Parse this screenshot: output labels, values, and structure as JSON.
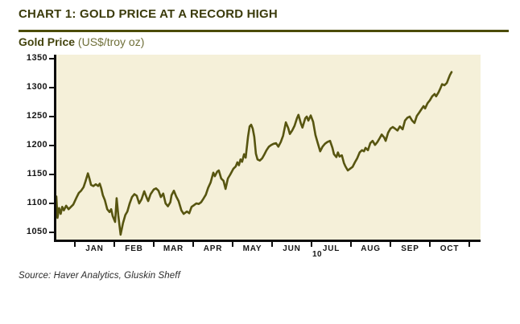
{
  "header": {
    "title": "CHART 1: GOLD PRICE AT A RECORD HIGH",
    "subtitle_bold": "Gold Price",
    "subtitle_units": " (US$/troy oz)"
  },
  "footer": {
    "source": "Source: Haver Analytics, Gluskin Sheff"
  },
  "colors": {
    "title": "#3b3b0b",
    "rule": "#4c4c08",
    "plot_bg": "#f5f0d9",
    "line": "#575510",
    "axis": "#0d0d0d"
  },
  "chart_data": {
    "type": "line",
    "title": "Gold Price",
    "ylabel": "US$/troy oz",
    "xlabel": "",
    "ylim": [
      1050,
      1350
    ],
    "y_ticks": [
      1050,
      1100,
      1150,
      1200,
      1250,
      1300,
      1350
    ],
    "x_month_labels": [
      "JAN",
      "FEB",
      "MAR",
      "APR",
      "MAY",
      "JUN",
      "JUL",
      "AUG",
      "SEP",
      "OCT"
    ],
    "x_year_label": "10",
    "grid": false,
    "legend": "none",
    "series_name": "Gold price, US$/troy oz, mid-Dec 2009 to mid-Oct 2010",
    "x_unit": "months from Jan 1, 2010",
    "points": [
      [
        -0.47,
        1112
      ],
      [
        -0.44,
        1075
      ],
      [
        -0.4,
        1092
      ],
      [
        -0.36,
        1082
      ],
      [
        -0.32,
        1094
      ],
      [
        -0.28,
        1088
      ],
      [
        -0.22,
        1096
      ],
      [
        -0.16,
        1090
      ],
      [
        -0.1,
        1094
      ],
      [
        -0.04,
        1098
      ],
      [
        0.04,
        1110
      ],
      [
        0.1,
        1118
      ],
      [
        0.16,
        1122
      ],
      [
        0.22,
        1128
      ],
      [
        0.27,
        1138
      ],
      [
        0.33,
        1152
      ],
      [
        0.37,
        1143
      ],
      [
        0.41,
        1132
      ],
      [
        0.47,
        1130
      ],
      [
        0.53,
        1133
      ],
      [
        0.59,
        1130
      ],
      [
        0.63,
        1134
      ],
      [
        0.67,
        1126
      ],
      [
        0.71,
        1114
      ],
      [
        0.76,
        1106
      ],
      [
        0.82,
        1090
      ],
      [
        0.88,
        1085
      ],
      [
        0.92,
        1090
      ],
      [
        0.96,
        1078
      ],
      [
        1.02,
        1068
      ],
      [
        1.06,
        1109
      ],
      [
        1.1,
        1080
      ],
      [
        1.16,
        1046
      ],
      [
        1.22,
        1066
      ],
      [
        1.28,
        1080
      ],
      [
        1.33,
        1086
      ],
      [
        1.39,
        1100
      ],
      [
        1.45,
        1111
      ],
      [
        1.51,
        1116
      ],
      [
        1.57,
        1113
      ],
      [
        1.63,
        1100
      ],
      [
        1.69,
        1107
      ],
      [
        1.76,
        1121
      ],
      [
        1.82,
        1110
      ],
      [
        1.86,
        1104
      ],
      [
        1.92,
        1116
      ],
      [
        2.0,
        1124
      ],
      [
        2.06,
        1126
      ],
      [
        2.12,
        1122
      ],
      [
        2.18,
        1111
      ],
      [
        2.24,
        1117
      ],
      [
        2.3,
        1100
      ],
      [
        2.36,
        1095
      ],
      [
        2.42,
        1102
      ],
      [
        2.45,
        1114
      ],
      [
        2.51,
        1122
      ],
      [
        2.57,
        1112
      ],
      [
        2.63,
        1104
      ],
      [
        2.7,
        1088
      ],
      [
        2.76,
        1082
      ],
      [
        2.84,
        1086
      ],
      [
        2.9,
        1083
      ],
      [
        2.96,
        1094
      ],
      [
        3.02,
        1097
      ],
      [
        3.08,
        1100
      ],
      [
        3.14,
        1099
      ],
      [
        3.2,
        1102
      ],
      [
        3.26,
        1108
      ],
      [
        3.32,
        1115
      ],
      [
        3.38,
        1127
      ],
      [
        3.44,
        1136
      ],
      [
        3.51,
        1153
      ],
      [
        3.55,
        1147
      ],
      [
        3.61,
        1155
      ],
      [
        3.65,
        1157
      ],
      [
        3.71,
        1143
      ],
      [
        3.77,
        1139
      ],
      [
        3.82,
        1125
      ],
      [
        3.88,
        1143
      ],
      [
        3.94,
        1150
      ],
      [
        4.02,
        1160
      ],
      [
        4.08,
        1164
      ],
      [
        4.12,
        1171
      ],
      [
        4.16,
        1166
      ],
      [
        4.2,
        1176
      ],
      [
        4.24,
        1172
      ],
      [
        4.29,
        1185
      ],
      [
        4.33,
        1179
      ],
      [
        4.39,
        1215
      ],
      [
        4.43,
        1233
      ],
      [
        4.47,
        1236
      ],
      [
        4.51,
        1229
      ],
      [
        4.55,
        1215
      ],
      [
        4.59,
        1186
      ],
      [
        4.63,
        1176
      ],
      [
        4.69,
        1174
      ],
      [
        4.75,
        1178
      ],
      [
        4.8,
        1184
      ],
      [
        4.86,
        1192
      ],
      [
        4.92,
        1198
      ],
      [
        4.98,
        1201
      ],
      [
        5.04,
        1203
      ],
      [
        5.1,
        1204
      ],
      [
        5.16,
        1198
      ],
      [
        5.22,
        1206
      ],
      [
        5.28,
        1217
      ],
      [
        5.35,
        1240
      ],
      [
        5.41,
        1230
      ],
      [
        5.45,
        1220
      ],
      [
        5.51,
        1226
      ],
      [
        5.57,
        1234
      ],
      [
        5.63,
        1247
      ],
      [
        5.67,
        1253
      ],
      [
        5.73,
        1238
      ],
      [
        5.77,
        1231
      ],
      [
        5.84,
        1247
      ],
      [
        5.88,
        1250
      ],
      [
        5.92,
        1243
      ],
      [
        5.98,
        1252
      ],
      [
        6.04,
        1241
      ],
      [
        6.1,
        1218
      ],
      [
        6.16,
        1204
      ],
      [
        6.22,
        1190
      ],
      [
        6.28,
        1198
      ],
      [
        6.34,
        1203
      ],
      [
        6.4,
        1206
      ],
      [
        6.47,
        1208
      ],
      [
        6.53,
        1196
      ],
      [
        6.57,
        1185
      ],
      [
        6.63,
        1180
      ],
      [
        6.67,
        1188
      ],
      [
        6.71,
        1181
      ],
      [
        6.77,
        1183
      ],
      [
        6.82,
        1170
      ],
      [
        6.86,
        1164
      ],
      [
        6.92,
        1157
      ],
      [
        6.98,
        1160
      ],
      [
        7.04,
        1163
      ],
      [
        7.1,
        1171
      ],
      [
        7.16,
        1178
      ],
      [
        7.22,
        1188
      ],
      [
        7.28,
        1192
      ],
      [
        7.33,
        1190
      ],
      [
        7.37,
        1196
      ],
      [
        7.43,
        1192
      ],
      [
        7.49,
        1204
      ],
      [
        7.55,
        1208
      ],
      [
        7.61,
        1201
      ],
      [
        7.67,
        1206
      ],
      [
        7.73,
        1213
      ],
      [
        7.78,
        1219
      ],
      [
        7.84,
        1214
      ],
      [
        7.88,
        1208
      ],
      [
        7.94,
        1222
      ],
      [
        8.0,
        1229
      ],
      [
        8.06,
        1232
      ],
      [
        8.12,
        1229
      ],
      [
        8.18,
        1226
      ],
      [
        8.24,
        1233
      ],
      [
        8.31,
        1228
      ],
      [
        8.37,
        1243
      ],
      [
        8.43,
        1248
      ],
      [
        8.49,
        1250
      ],
      [
        8.55,
        1243
      ],
      [
        8.61,
        1239
      ],
      [
        8.67,
        1251
      ],
      [
        8.73,
        1257
      ],
      [
        8.79,
        1263
      ],
      [
        8.84,
        1268
      ],
      [
        8.88,
        1264
      ],
      [
        8.94,
        1273
      ],
      [
        9.0,
        1278
      ],
      [
        9.06,
        1285
      ],
      [
        9.12,
        1289
      ],
      [
        9.16,
        1285
      ],
      [
        9.22,
        1292
      ],
      [
        9.27,
        1299
      ],
      [
        9.31,
        1306
      ],
      [
        9.37,
        1304
      ],
      [
        9.43,
        1308
      ],
      [
        9.47,
        1315
      ],
      [
        9.51,
        1322
      ],
      [
        9.55,
        1327
      ]
    ]
  }
}
